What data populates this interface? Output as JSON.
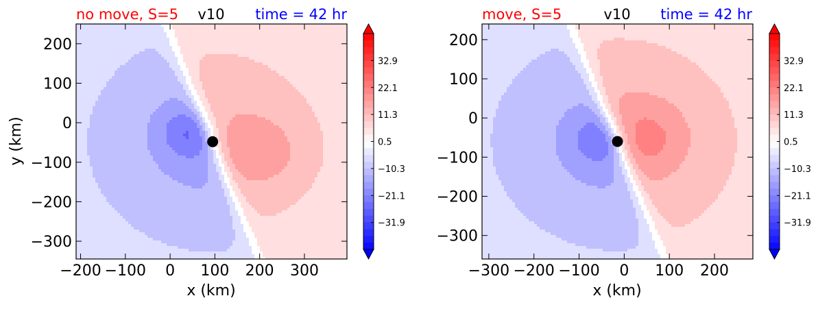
{
  "chart_data": [
    {
      "type": "heatmap",
      "title_left": "no move, S=5",
      "title_center": "v10",
      "title_right": "time = 42 hr",
      "xlabel": "x (km)",
      "ylabel": "y (km)",
      "xlim": [
        -210,
        395
      ],
      "ylim": [
        -345,
        250
      ],
      "xticks": [
        -200,
        -100,
        0,
        100,
        200,
        300
      ],
      "xtick_labels": [
        "−200",
        "−100",
        "0",
        "100",
        "200",
        "300"
      ],
      "yticks": [
        200,
        100,
        0,
        -100,
        -200,
        -300
      ],
      "ytick_labels": [
        "200",
        "100",
        "0",
        "−100",
        "−200",
        "−300"
      ],
      "center_marker": [
        95,
        -48
      ],
      "colorbar": {
        "min": -42.7,
        "max": 43.7,
        "ticks": [
          32.9,
          22.1,
          11.3,
          0.5,
          -10.3,
          -21.1,
          -31.9
        ],
        "tick_labels": [
          "32.9",
          "22.1",
          "11.3",
          "0.5",
          "−10.3",
          "−21.1",
          "−31.9"
        ],
        "extend": "both"
      },
      "field": {
        "left_min": -18,
        "right_max": 15,
        "neg_core": [
          40,
          -25
        ],
        "pos_core": [
          210,
          -75
        ]
      }
    },
    {
      "type": "heatmap",
      "title_left": "move, S=5",
      "title_center": "v10",
      "title_right": "time = 42 hr",
      "xlabel": "x (km)",
      "ylabel": "",
      "xlim": [
        -315,
        285
      ],
      "ylim": [
        -360,
        240
      ],
      "xticks": [
        -300,
        -200,
        -100,
        0,
        100,
        200
      ],
      "xtick_labels": [
        "−300",
        "−200",
        "−100",
        "0",
        "100",
        "200"
      ],
      "yticks": [
        200,
        100,
        0,
        -100,
        -200,
        -300
      ],
      "ytick_labels": [
        "200",
        "100",
        "0",
        "−100",
        "−200",
        "−300"
      ],
      "center_marker": [
        -15,
        -60
      ],
      "colorbar": {
        "min": -42.7,
        "max": 43.7,
        "ticks": [
          32.9,
          22.1,
          11.3,
          0.5,
          -10.3,
          -21.1,
          -31.9
        ],
        "tick_labels": [
          "32.9",
          "22.1",
          "11.3",
          "0.5",
          "−10.3",
          "−21.1",
          "−31.9"
        ],
        "extend": "both"
      },
      "field": {
        "left_min": -18,
        "right_max": 17,
        "neg_core": [
          -50,
          -55
        ],
        "pos_core": [
          50,
          -50
        ]
      }
    }
  ]
}
